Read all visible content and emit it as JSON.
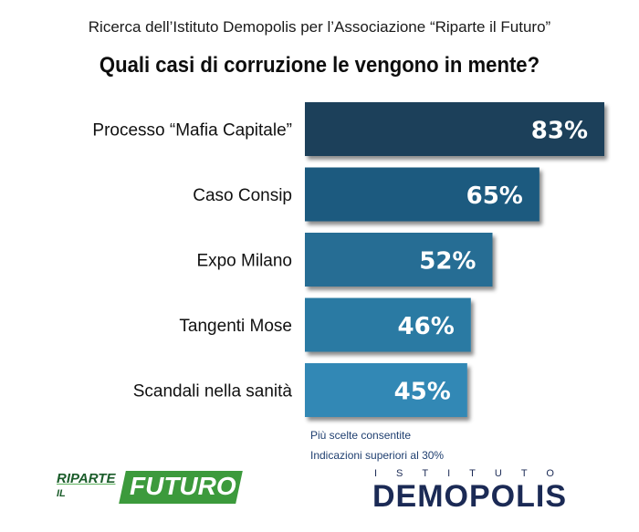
{
  "header": {
    "subtitle": "Ricerca dell’Istituto Demopolis per l’Associazione “Riparte il Futuro”",
    "title": "Quali casi di corruzione le vengono in mente?"
  },
  "chart_data": {
    "type": "bar",
    "orientation": "horizontal",
    "title": "Quali casi di corruzione le vengono in mente?",
    "subtitle": "Ricerca dell’Istituto Demopolis per l’Associazione “Riparte il Futuro”",
    "categories": [
      "Processo “Mafia Capitale”",
      "Caso Consip",
      "Expo Milano",
      "Tangenti Mose",
      "Scandali nella sanità"
    ],
    "values": [
      83,
      65,
      52,
      46,
      45
    ],
    "value_labels": [
      "83%",
      "65%",
      "52%",
      "46%",
      "45%"
    ],
    "xlim": [
      0,
      83
    ],
    "colors": [
      "#1d3f5a",
      "#1e5a7f",
      "#266d94",
      "#2b7aa3",
      "#3388b5"
    ],
    "grid": false,
    "legend": "none"
  },
  "notes": {
    "line1": "Più scelte consentite",
    "line2": "Indicazioni superiori al 30%"
  },
  "logos": {
    "riparte_top": "RIPARTE",
    "riparte_il": "IL",
    "riparte_futuro": "FUTURO",
    "demopolis_top": "ISTITUTO",
    "demopolis_name": "DEMOPOLIS"
  },
  "colors": {
    "riparte_green": "#3c9a3c",
    "demopolis_navy": "#1b2a55",
    "notes_blue": "#1f3f70"
  }
}
